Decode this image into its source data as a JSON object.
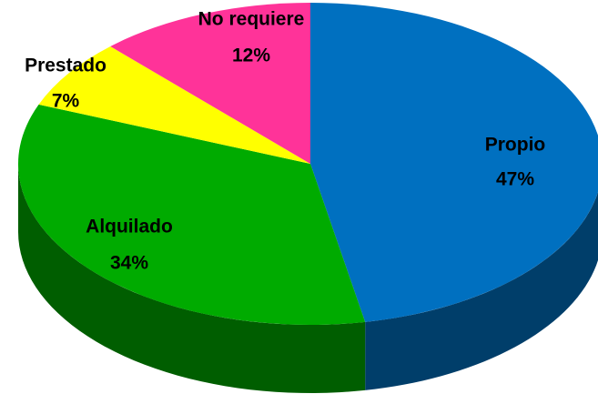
{
  "chart_data": {
    "type": "pie3d",
    "categories": [
      "Propio",
      "Alquilado",
      "Prestado",
      "No requiere"
    ],
    "values": [
      47,
      34,
      7,
      12
    ],
    "value_labels": [
      "47%",
      "34%",
      "7%",
      "12%"
    ],
    "colors": [
      "#0070c0",
      "#00ab00",
      "#ffff00",
      "#ff3399"
    ]
  }
}
